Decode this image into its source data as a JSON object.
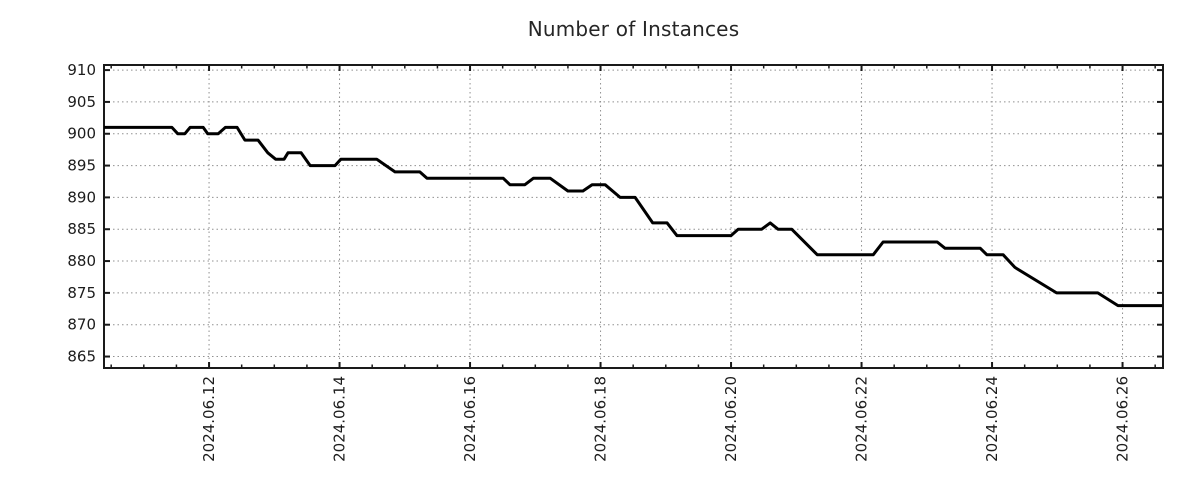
{
  "title": "Number of Instances",
  "chart_data": {
    "type": "line",
    "title": "Number of Instances",
    "xlabel": "",
    "ylabel": "",
    "legend_position": "none",
    "background_color": "#ffffff",
    "grid_color": "#909090",
    "border_color": "#1a1a1a",
    "text_color": "#1c1c1c",
    "x_axis": {
      "unit": "date",
      "tick_labels": [
        "2024.06.12",
        "2024.06.14",
        "2024.06.16",
        "2024.06.18",
        "2024.06.20",
        "2024.06.22",
        "2024.06.24",
        "2024.06.26"
      ],
      "tick_positions_day": [
        12,
        14,
        16,
        18,
        20,
        22,
        24,
        26
      ],
      "minor_tick_step_days": 0.5,
      "range_days": [
        10.39,
        26.62
      ],
      "label_rotation_deg": -90,
      "grid": "dotted"
    },
    "y_axis": {
      "tick_labels": [
        "865",
        "870",
        "875",
        "880",
        "885",
        "890",
        "895",
        "900",
        "905",
        "910"
      ],
      "tick_values": [
        865,
        870,
        875,
        880,
        885,
        890,
        895,
        900,
        905,
        910
      ],
      "range": [
        863.2,
        910.8
      ],
      "grid": "dotted"
    },
    "series": [
      {
        "name": "instances",
        "color": "#000000",
        "line_width": 3,
        "points_day_value": [
          [
            10.39,
            901
          ],
          [
            11.43,
            901
          ],
          [
            11.52,
            900
          ],
          [
            11.63,
            900
          ],
          [
            11.71,
            901
          ],
          [
            11.91,
            901
          ],
          [
            11.98,
            900
          ],
          [
            12.14,
            900
          ],
          [
            12.25,
            901
          ],
          [
            12.43,
            901
          ],
          [
            12.55,
            899
          ],
          [
            12.75,
            899
          ],
          [
            12.9,
            897
          ],
          [
            13.02,
            896
          ],
          [
            13.15,
            896
          ],
          [
            13.21,
            897
          ],
          [
            13.41,
            897
          ],
          [
            13.55,
            895
          ],
          [
            13.93,
            895
          ],
          [
            14.02,
            896
          ],
          [
            14.57,
            896
          ],
          [
            14.85,
            894
          ],
          [
            15.23,
            894
          ],
          [
            15.34,
            893
          ],
          [
            16.51,
            893
          ],
          [
            16.61,
            892
          ],
          [
            16.84,
            892
          ],
          [
            16.97,
            893
          ],
          [
            17.23,
            893
          ],
          [
            17.5,
            891
          ],
          [
            17.73,
            891
          ],
          [
            17.87,
            892
          ],
          [
            18.07,
            892
          ],
          [
            18.3,
            890
          ],
          [
            18.53,
            890
          ],
          [
            18.8,
            886
          ],
          [
            19.02,
            886
          ],
          [
            19.17,
            884
          ],
          [
            20.0,
            884
          ],
          [
            20.11,
            885
          ],
          [
            20.47,
            885
          ],
          [
            20.6,
            886
          ],
          [
            20.72,
            885
          ],
          [
            20.93,
            885
          ],
          [
            21.32,
            881
          ],
          [
            22.18,
            881
          ],
          [
            22.33,
            883
          ],
          [
            23.16,
            883
          ],
          [
            23.28,
            882
          ],
          [
            23.82,
            882
          ],
          [
            23.92,
            881
          ],
          [
            24.17,
            881
          ],
          [
            24.35,
            879
          ],
          [
            24.99,
            875
          ],
          [
            25.62,
            875
          ],
          [
            25.93,
            873
          ],
          [
            26.61,
            873
          ]
        ]
      }
    ]
  }
}
